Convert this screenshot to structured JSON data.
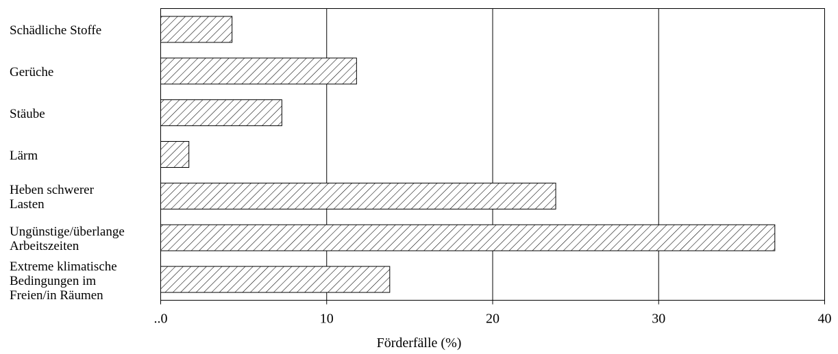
{
  "chart_data": {
    "type": "bar",
    "orientation": "horizontal",
    "categories": [
      "Schädliche Stoffe",
      "Gerüche",
      "Stäube",
      "Lärm",
      "Heben schwerer\nLasten",
      "Ungünstige/überlange\nArbeitszeiten",
      "Extreme klimatische\nBedingungen im\nFreien/in Räumen"
    ],
    "values": [
      4.3,
      11.8,
      7.3,
      1.7,
      23.8,
      37.0,
      13.8
    ],
    "xlabel": "Förderfälle (%)",
    "xlim": [
      0,
      40
    ],
    "xticks": [
      0,
      10,
      20,
      30,
      40
    ],
    "xtick_labels": [
      "..0",
      "10",
      "20",
      "30",
      "40"
    ],
    "grid": "vertical",
    "fill": "diagonal-hatch",
    "bar_color": "#ffffff",
    "line_color": "#000000"
  }
}
